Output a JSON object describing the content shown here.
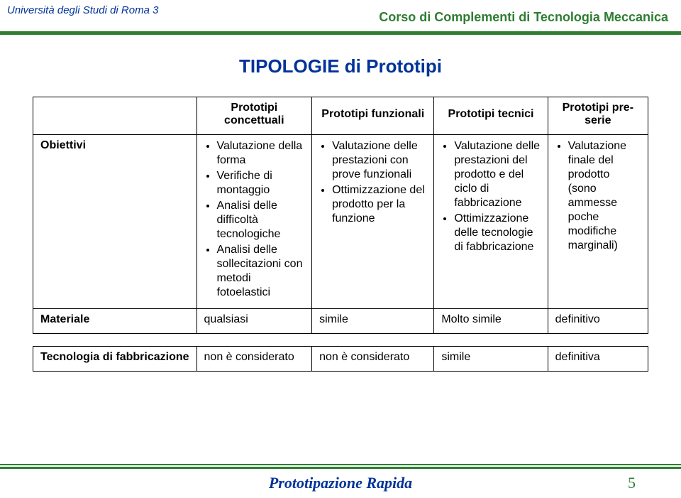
{
  "header": {
    "left": "Università degli Studi di Roma 3",
    "right": "Corso di Complementi di Tecnologia Meccanica"
  },
  "title": "TIPOLOGIE di Prototipi",
  "table": {
    "col_headers": [
      "Prototipi concettuali",
      "Prototipi funzionali",
      "Prototipi tecnici",
      "Prototipi pre-serie"
    ],
    "rows": {
      "obiettivi": {
        "label": "Obiettivi",
        "cells": [
          [
            "Valutazione della forma",
            "Verifiche di montaggio",
            "Analisi delle difficoltà tecnologiche",
            "Analisi delle sollecitazioni con metodi fotoelastici"
          ],
          [
            "Valutazione delle prestazioni con prove funzionali",
            "Ottimizzazione del prodotto per la funzione"
          ],
          [
            "Valutazione delle prestazioni del prodotto e del ciclo di fabbricazione",
            "Ottimizzazione delle tecnologie di fabbricazione"
          ],
          [
            "Valutazione finale del prodotto (sono ammesse poche modifiche marginali)"
          ]
        ]
      },
      "materiale": {
        "label": "Materiale",
        "cells": [
          "qualsiasi",
          "simile",
          "Molto simile",
          "definitivo"
        ]
      },
      "tecnologia": {
        "label": "Tecnologia di fabbricazione",
        "cells": [
          "non è considerato",
          "non è considerato",
          "simile",
          "definitiva"
        ]
      }
    }
  },
  "footer": {
    "title": "Prototipazione Rapida",
    "page": "5"
  },
  "colors": {
    "blue": "#003399",
    "green": "#2e7d32"
  }
}
